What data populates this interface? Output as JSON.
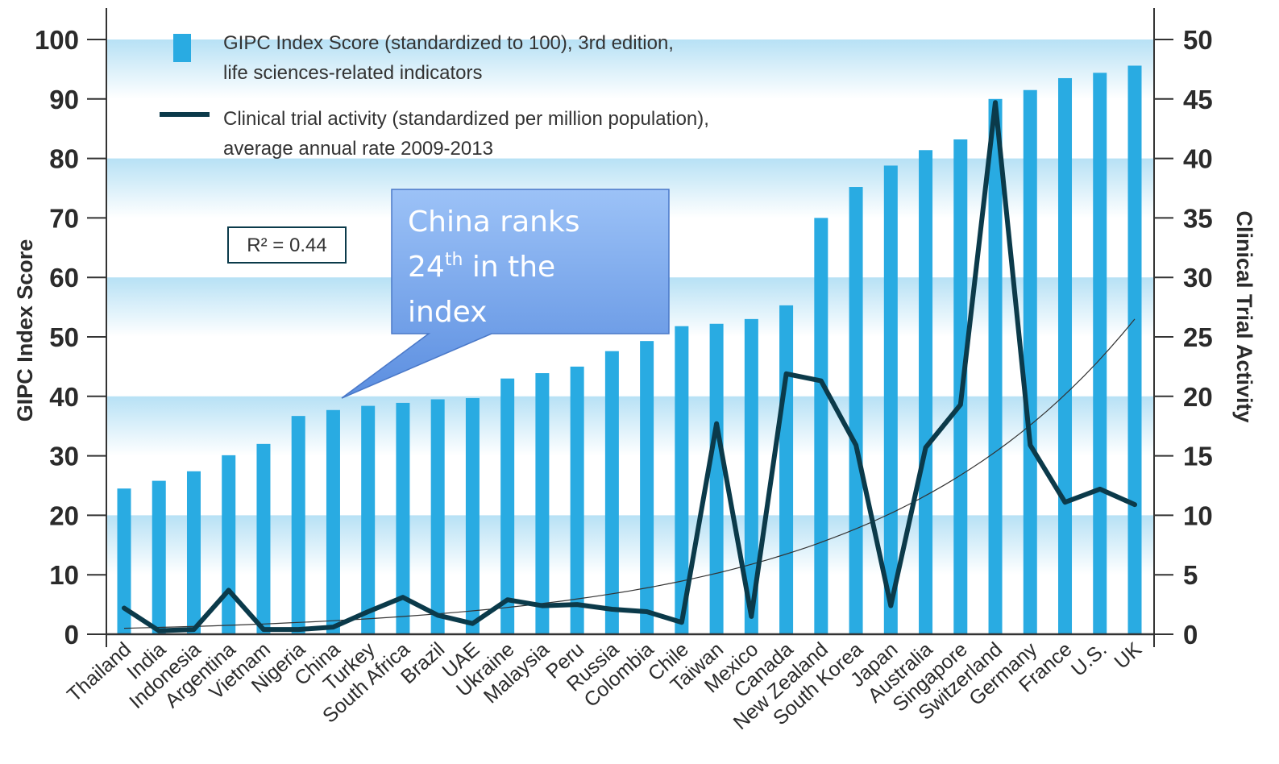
{
  "chart_data": {
    "type": "bar",
    "categories": [
      "Thailand",
      "India",
      "Indonesia",
      "Argentina",
      "Vietnam",
      "Nigeria",
      "China",
      "Turkey",
      "South Africa",
      "Brazil",
      "UAE",
      "Ukraine",
      "Malaysia",
      "Peru",
      "Russia",
      "Colombia",
      "Chile",
      "Taiwan",
      "Mexico",
      "Canada",
      "New Zealand",
      "South Korea",
      "Japan",
      "Australia",
      "Singapore",
      "Switzerland",
      "Germany",
      "France",
      "U.S.",
      "UK"
    ],
    "series": [
      {
        "name": "GIPC Index Score (standardized to 100), 3rd edition, life sciences-related indicators",
        "axis": "left",
        "type": "bar",
        "color": "#29abe2",
        "values": [
          24.5,
          25.8,
          27.4,
          30.1,
          32,
          36.7,
          37.7,
          38.4,
          38.9,
          39.5,
          39.7,
          43,
          43.9,
          45,
          47.6,
          49.3,
          51.8,
          52.2,
          53,
          55.3,
          70,
          75.2,
          78.8,
          81.4,
          83.2,
          90,
          91.5,
          93.5,
          94.4,
          95.6
        ]
      },
      {
        "name": "Clinical trial activity (standardized per million population), average annual rate 2009-2013",
        "axis": "right",
        "type": "line",
        "color": "#0b3a4a",
        "values": [
          2.2,
          0.3,
          0.4,
          3.7,
          0.4,
          0.4,
          0.6,
          1.9,
          3.1,
          1.6,
          0.9,
          2.9,
          2.4,
          2.5,
          2.1,
          1.9,
          1.0,
          17.7,
          1.5,
          21.9,
          21.3,
          15.9,
          2.4,
          15.7,
          19.3,
          44.7,
          15.9,
          11.1,
          12.2,
          10.9
        ]
      },
      {
        "name": "",
        "axis": "right",
        "type": "trendline",
        "kind": "exponential",
        "color": "#333333",
        "start_value": 0.5,
        "end_value": 26.5
      }
    ],
    "yaxis_left": {
      "label": "GIPC Index Score",
      "ylim": [
        0,
        100
      ],
      "ticks": [
        "0",
        "10",
        "20",
        "30",
        "40",
        "50",
        "60",
        "70",
        "80",
        "90",
        "100"
      ]
    },
    "yaxis_right": {
      "label": "Clinical Trial Activity",
      "ylim": [
        0,
        50
      ],
      "ticks": [
        "0",
        "5",
        "10",
        "15",
        "20",
        "25",
        "30",
        "35",
        "40",
        "45",
        "50"
      ]
    },
    "legend": {
      "placement": "top-left",
      "bar_lines": [
        "GIPC Index Score (standardized to 100), 3rd edition,",
        "life sciences-related indicators"
      ],
      "line_lines": [
        "Clinical trial activity (standardized per million population),",
        "average annual rate 2009-2013"
      ]
    },
    "r2_box": "R² = 0.44",
    "grid": "alternating horizontal bands",
    "callout": {
      "lines": [
        "China ranks",
        "24",
        "th",
        " in the",
        "index"
      ],
      "points_to": "China",
      "fill_top": "#9cc2f7",
      "fill_bottom": "#5b8ee0"
    }
  }
}
